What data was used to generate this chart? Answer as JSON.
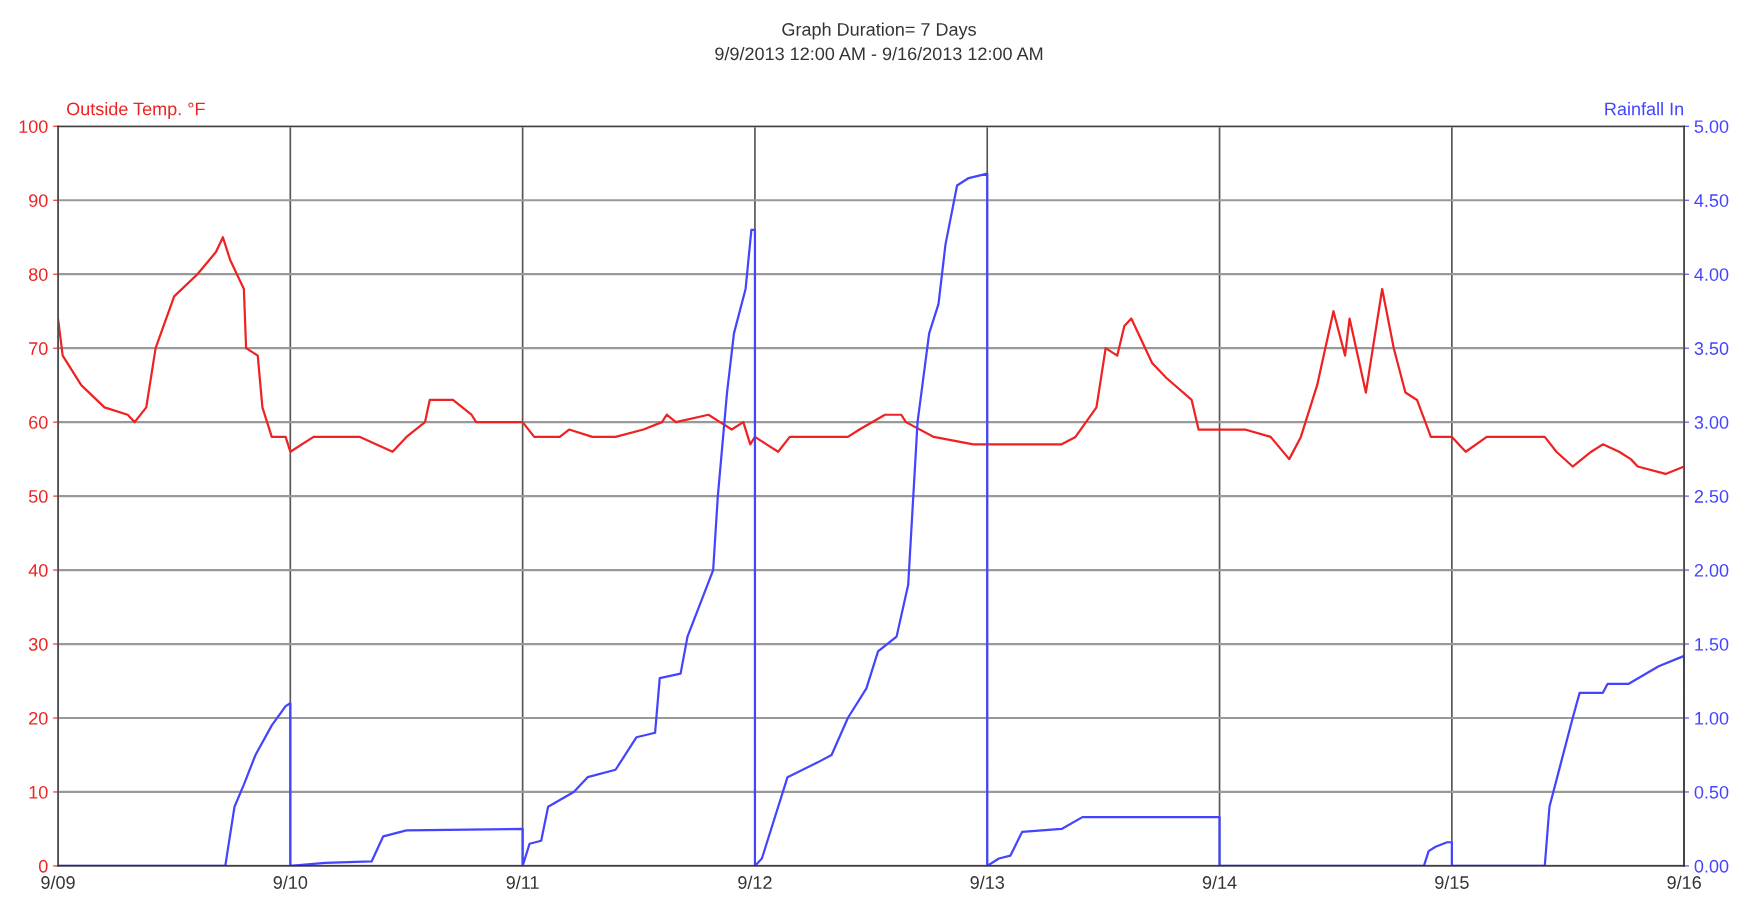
{
  "chart_data": {
    "type": "line",
    "title": "Graph Duration= 7 Days",
    "subtitle": "9/9/2013 12:00 AM - 9/16/2013 12:00 AM",
    "ylabel": "Outside Temp. °F",
    "y2label": "Rainfall In",
    "grid": true,
    "xlim": [
      "2013-09-09T00:00",
      "2013-09-16T00:00"
    ],
    "xticks": [
      {
        "value": "2013-09-09T00:00",
        "label": "9/09"
      },
      {
        "value": "2013-09-10T00:00",
        "label": "9/10"
      },
      {
        "value": "2013-09-11T00:00",
        "label": "9/11"
      },
      {
        "value": "2013-09-12T00:00",
        "label": "9/12"
      },
      {
        "value": "2013-09-13T00:00",
        "label": "9/13"
      },
      {
        "value": "2013-09-14T00:00",
        "label": "9/14"
      },
      {
        "value": "2013-09-15T00:00",
        "label": "9/15"
      },
      {
        "value": "2013-09-16T00:00",
        "label": "9/16"
      }
    ],
    "ylim": [
      0,
      100
    ],
    "yticks": [
      0,
      10,
      20,
      30,
      40,
      50,
      60,
      70,
      80,
      90,
      100
    ],
    "y2lim": [
      0,
      5
    ],
    "y2ticks": [
      {
        "value": 0,
        "label": "0.00"
      },
      {
        "value": 0.5,
        "label": "0.50"
      },
      {
        "value": 1,
        "label": "1.00"
      },
      {
        "value": 1.5,
        "label": "1.50"
      },
      {
        "value": 2,
        "label": "2.00"
      },
      {
        "value": 2.5,
        "label": "2.50"
      },
      {
        "value": 3,
        "label": "3.00"
      },
      {
        "value": 3.5,
        "label": "3.50"
      },
      {
        "value": 4,
        "label": "4.00"
      },
      {
        "value": 4.5,
        "label": "4.50"
      },
      {
        "value": 5,
        "label": "5.00"
      }
    ],
    "series": [
      {
        "color": "#ee2222",
        "axis": "y",
        "x": [
          "2013-09-09T00:00",
          "2013-09-09T00:29",
          "2013-09-09T02:24",
          "2013-09-09T04:48",
          "2013-09-09T07:12",
          "2013-09-09T07:55",
          "2013-09-09T09:07",
          "2013-09-09T10:05",
          "2013-09-09T12:00",
          "2013-09-09T14:24",
          "2013-09-09T16:19",
          "2013-09-09T17:02",
          "2013-09-09T17:46",
          "2013-09-09T19:12",
          "2013-09-09T19:26",
          "2013-09-09T20:38",
          "2013-09-09T21:07",
          "2013-09-09T22:05",
          "2013-09-09T23:31",
          "2013-09-10T00:00",
          "2013-09-10T02:24",
          "2013-09-10T07:12",
          "2013-09-10T10:34",
          "2013-09-10T12:00",
          "2013-09-10T13:55",
          "2013-09-10T14:24",
          "2013-09-10T16:48",
          "2013-09-10T18:43",
          "2013-09-10T19:12",
          "2013-09-11T00:00",
          "2013-09-11T01:12",
          "2013-09-11T03:50",
          "2013-09-11T04:48",
          "2013-09-11T07:12",
          "2013-09-11T09:36",
          "2013-09-11T12:29",
          "2013-09-11T14:24",
          "2013-09-11T14:53",
          "2013-09-11T15:50",
          "2013-09-11T19:12",
          "2013-09-11T20:24",
          "2013-09-11T21:36",
          "2013-09-11T22:48",
          "2013-09-11T23:31",
          "2013-09-12T00:00",
          "2013-09-12T01:12",
          "2013-09-12T02:24",
          "2013-09-12T03:36",
          "2013-09-12T09:36",
          "2013-09-12T10:48",
          "2013-09-12T13:26",
          "2013-09-12T15:07",
          "2013-09-12T15:36",
          "2013-09-12T18:29",
          "2013-09-12T22:34",
          "2013-09-13T07:41",
          "2013-09-13T09:07",
          "2013-09-13T11:17",
          "2013-09-13T12:14",
          "2013-09-13T13:26",
          "2013-09-13T14:10",
          "2013-09-13T14:53",
          "2013-09-13T17:02",
          "2013-09-13T18:29",
          "2013-09-13T21:07",
          "2013-09-13T21:50",
          "2013-09-14T00:00",
          "2013-09-14T02:38",
          "2013-09-14T05:17",
          "2013-09-14T07:12",
          "2013-09-14T08:24",
          "2013-09-14T10:05",
          "2013-09-14T11:46",
          "2013-09-14T12:58",
          "2013-09-14T13:26",
          "2013-09-14T15:07",
          "2013-09-14T16:48",
          "2013-09-14T18:00",
          "2013-09-14T19:12",
          "2013-09-14T20:24",
          "2013-09-14T21:50",
          "2013-09-15T00:00",
          "2013-09-15T01:26",
          "2013-09-15T03:36",
          "2013-09-15T09:36",
          "2013-09-15T10:48",
          "2013-09-15T12:29",
          "2013-09-15T14:24",
          "2013-09-15T15:36",
          "2013-09-15T17:17",
          "2013-09-15T18:29",
          "2013-09-15T19:12",
          "2013-09-15T22:05",
          "2013-09-16T00:00"
        ],
        "values": [
          74,
          69,
          65,
          62,
          61,
          60,
          62,
          70,
          77,
          80,
          83,
          85,
          82,
          78,
          70,
          69,
          62,
          58,
          58,
          56,
          58,
          58,
          56,
          58,
          60,
          63,
          63,
          61,
          60,
          60,
          58,
          58,
          59,
          58,
          58,
          59,
          60,
          61,
          60,
          61,
          60,
          59,
          60,
          57,
          58,
          57,
          56,
          58,
          58,
          59,
          61,
          61,
          60,
          58,
          57,
          57,
          58,
          62,
          70,
          69,
          73,
          74,
          68,
          66,
          63,
          59,
          59,
          59,
          58,
          55,
          58,
          65,
          75,
          69,
          74,
          64,
          78,
          70,
          64,
          63,
          58,
          58,
          56,
          58,
          58,
          56,
          54,
          56,
          57,
          56,
          55,
          54,
          53,
          54
        ]
      },
      {
        "color": "#4444ff",
        "axis": "y2",
        "x": [
          "2013-09-09T00:00",
          "2013-09-09T17:17",
          "2013-09-09T17:31",
          "2013-09-09T18:14",
          "2013-09-09T19:12",
          "2013-09-09T20:24",
          "2013-09-09T22:05",
          "2013-09-09T23:31",
          "2013-09-10T00:00",
          "2013-09-10T00:00",
          "2013-09-10T03:36",
          "2013-09-10T08:24",
          "2013-09-10T09:36",
          "2013-09-10T12:00",
          "2013-09-11T00:00",
          "2013-09-11T00:00",
          "2013-09-11T00:43",
          "2013-09-11T01:55",
          "2013-09-11T02:38",
          "2013-09-11T05:17",
          "2013-09-11T06:43",
          "2013-09-11T09:36",
          "2013-09-11T11:46",
          "2013-09-11T13:41",
          "2013-09-11T14:10",
          "2013-09-11T16:19",
          "2013-09-11T17:02",
          "2013-09-11T19:41",
          "2013-09-11T20:10",
          "2013-09-11T21:07",
          "2013-09-11T21:50",
          "2013-09-11T23:02",
          "2013-09-11T23:38",
          "2013-09-12T00:00",
          "2013-09-12T00:00",
          "2013-09-12T00:43",
          "2013-09-12T03:22",
          "2013-09-12T06:29",
          "2013-09-12T07:55",
          "2013-09-12T09:36",
          "2013-09-12T11:31",
          "2013-09-12T12:43",
          "2013-09-12T14:38",
          "2013-09-12T15:50",
          "2013-09-12T16:48",
          "2013-09-12T18:00",
          "2013-09-12T18:58",
          "2013-09-12T19:41",
          "2013-09-12T20:53",
          "2013-09-12T22:05",
          "2013-09-13T00:00",
          "2013-09-13T00:00",
          "2013-09-13T01:12",
          "2013-09-13T02:24",
          "2013-09-13T03:36",
          "2013-09-13T07:41",
          "2013-09-13T09:50",
          "2013-09-14T00:00",
          "2013-09-14T00:00",
          "2013-09-14T21:07",
          "2013-09-14T21:36",
          "2013-09-14T22:19",
          "2013-09-14T23:31",
          "2013-09-15T00:00",
          "2013-09-15T00:00",
          "2013-09-15T09:36",
          "2013-09-15T10:05",
          "2013-09-15T11:17",
          "2013-09-15T12:29",
          "2013-09-15T13:12",
          "2013-09-15T15:36",
          "2013-09-15T16:05",
          "2013-09-15T18:14",
          "2013-09-15T21:22",
          "2013-09-16T00:00",
          "2013-09-16T00:00"
        ],
        "values": [
          0,
          0,
          0.1,
          0.4,
          0.55,
          0.75,
          0.95,
          1.08,
          1.1,
          0,
          0.02,
          0.03,
          0.2,
          0.24,
          0.25,
          0,
          0.15,
          0.17,
          0.4,
          0.5,
          0.6,
          0.65,
          0.87,
          0.9,
          1.27,
          1.3,
          1.55,
          2.0,
          2.5,
          3.2,
          3.6,
          3.9,
          4.3,
          4.3,
          0,
          0.05,
          0.6,
          0.7,
          0.75,
          1.0,
          1.2,
          1.45,
          1.55,
          1.9,
          3.0,
          3.6,
          3.8,
          4.2,
          4.6,
          4.65,
          4.68,
          0,
          0.05,
          0.07,
          0.23,
          0.25,
          0.33,
          0.33,
          0,
          0,
          0.1,
          0.13,
          0.16,
          0.16,
          0,
          0,
          0.4,
          0.7,
          1.0,
          1.17,
          1.17,
          1.23,
          1.23,
          1.35,
          1.42,
          0
        ]
      }
    ]
  }
}
